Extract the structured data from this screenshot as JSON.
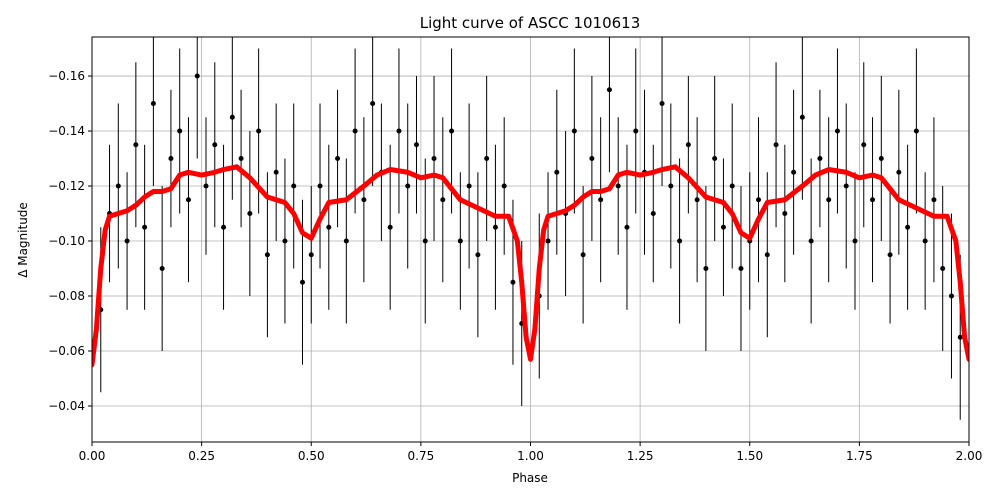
{
  "chart_data": {
    "type": "scatter",
    "title": "Light curve of ASCC 1010613",
    "xlabel": "Phase",
    "ylabel": "Δ Magnitude",
    "xlim": [
      0,
      2
    ],
    "ylim": [
      -0.0269,
      -0.1742
    ],
    "xticks": [
      {
        "value": 0,
        "label": "0.00"
      },
      {
        "value": 0.25,
        "label": "0.25"
      },
      {
        "value": 0.5,
        "label": "0.50"
      },
      {
        "value": 0.75,
        "label": "0.75"
      },
      {
        "value": 1,
        "label": "1.00"
      },
      {
        "value": 1.25,
        "label": "1.25"
      },
      {
        "value": 1.5,
        "label": "1.50"
      },
      {
        "value": 1.75,
        "label": "1.75"
      },
      {
        "value": 2,
        "label": "2.00"
      }
    ],
    "yticks": [
      {
        "value": -0.16,
        "label": "−0.16"
      },
      {
        "value": -0.14,
        "label": "−0.14"
      },
      {
        "value": -0.12,
        "label": "−0.12"
      },
      {
        "value": -0.1,
        "label": "−0.10"
      },
      {
        "value": -0.08,
        "label": "−0.08"
      },
      {
        "value": -0.06,
        "label": "−0.06"
      },
      {
        "value": -0.04,
        "label": "−0.04"
      }
    ],
    "grid": true,
    "series": [
      {
        "type": "scatter",
        "color": "#000000",
        "x": [
          0.02,
          0.04,
          0.06,
          0.08,
          0.1,
          0.12,
          0.14,
          0.16,
          0.18,
          0.2,
          0.22,
          0.24,
          0.26,
          0.28,
          0.3,
          0.32,
          0.34,
          0.36,
          0.38,
          0.4,
          0.42,
          0.44,
          0.46,
          0.48,
          0.5,
          0.52,
          0.54,
          0.56,
          0.58,
          0.6,
          0.62,
          0.64,
          0.66,
          0.68,
          0.7,
          0.72,
          0.74,
          0.76,
          0.78,
          0.8,
          0.82,
          0.84,
          0.86,
          0.88,
          0.9,
          0.92,
          0.94,
          0.96,
          0.98,
          1.02,
          1.04,
          1.06,
          1.08,
          1.1,
          1.12,
          1.14,
          1.16,
          1.18,
          1.2,
          1.22,
          1.24,
          1.26,
          1.28,
          1.3,
          1.32,
          1.34,
          1.36,
          1.38,
          1.4,
          1.42,
          1.44,
          1.46,
          1.48,
          1.5,
          1.52,
          1.54,
          1.56,
          1.58,
          1.6,
          1.62,
          1.64,
          1.66,
          1.68,
          1.7,
          1.72,
          1.74,
          1.76,
          1.78,
          1.8,
          1.82,
          1.84,
          1.86,
          1.88,
          1.9,
          1.92,
          1.94,
          1.96,
          1.98
        ],
        "values": [
          -0.075,
          -0.11,
          -0.12,
          -0.1,
          -0.135,
          -0.105,
          -0.15,
          -0.09,
          -0.13,
          -0.14,
          -0.115,
          -0.16,
          -0.12,
          -0.135,
          -0.105,
          -0.145,
          -0.13,
          -0.11,
          -0.14,
          -0.095,
          -0.125,
          -0.1,
          -0.12,
          -0.085,
          -0.095,
          -0.12,
          -0.105,
          -0.13,
          -0.1,
          -0.14,
          -0.115,
          -0.15,
          -0.125,
          -0.105,
          -0.14,
          -0.12,
          -0.135,
          -0.1,
          -0.13,
          -0.115,
          -0.14,
          -0.1,
          -0.12,
          -0.095,
          -0.13,
          -0.105,
          -0.12,
          -0.085,
          -0.07,
          -0.08,
          -0.1,
          -0.125,
          -0.11,
          -0.14,
          -0.095,
          -0.13,
          -0.115,
          -0.155,
          -0.12,
          -0.105,
          -0.14,
          -0.125,
          -0.11,
          -0.15,
          -0.12,
          -0.1,
          -0.135,
          -0.115,
          -0.09,
          -0.13,
          -0.105,
          -0.12,
          -0.09,
          -0.1,
          -0.115,
          -0.095,
          -0.135,
          -0.11,
          -0.125,
          -0.145,
          -0.1,
          -0.13,
          -0.115,
          -0.14,
          -0.12,
          -0.1,
          -0.135,
          -0.115,
          -0.13,
          -0.095,
          -0.125,
          -0.105,
          -0.14,
          -0.1,
          -0.115,
          -0.09,
          -0.08,
          -0.065
        ],
        "errors": [
          0.03,
          0.025,
          0.03,
          0.025,
          0.03,
          0.03,
          0.03,
          0.03,
          0.025,
          0.03,
          0.03,
          0.03,
          0.025,
          0.03,
          0.03,
          0.03,
          0.025,
          0.03,
          0.03,
          0.03,
          0.025,
          0.03,
          0.03,
          0.03,
          0.025,
          0.03,
          0.03,
          0.025,
          0.03,
          0.03,
          0.03,
          0.03,
          0.025,
          0.03,
          0.03,
          0.03,
          0.025,
          0.03,
          0.03,
          0.03,
          0.03,
          0.025,
          0.03,
          0.03,
          0.03,
          0.03,
          0.025,
          0.03,
          0.03,
          0.03,
          0.025,
          0.03,
          0.03,
          0.03,
          0.025,
          0.03,
          0.03,
          0.03,
          0.025,
          0.03,
          0.03,
          0.03,
          0.025,
          0.03,
          0.03,
          0.03,
          0.025,
          0.03,
          0.03,
          0.03,
          0.025,
          0.03,
          0.03,
          0.025,
          0.03,
          0.03,
          0.03,
          0.025,
          0.03,
          0.03,
          0.03,
          0.025,
          0.03,
          0.03,
          0.03,
          0.025,
          0.03,
          0.03,
          0.03,
          0.025,
          0.03,
          0.03,
          0.03,
          0.025,
          0.03,
          0.03,
          0.03,
          0.03
        ]
      },
      {
        "type": "line",
        "color": "#ff0000",
        "x": [
          0,
          0.01,
          0.02,
          0.03,
          0.04,
          0.06,
          0.08,
          0.1,
          0.12,
          0.14,
          0.16,
          0.18,
          0.2,
          0.22,
          0.25,
          0.28,
          0.3,
          0.33,
          0.36,
          0.4,
          0.44,
          0.46,
          0.48,
          0.5,
          0.52,
          0.54,
          0.58,
          0.62,
          0.65,
          0.68,
          0.72,
          0.75,
          0.78,
          0.8,
          0.84,
          0.88,
          0.92,
          0.95,
          0.97,
          0.98,
          0.99,
          1,
          1.01,
          1.02,
          1.03,
          1.04,
          1.06,
          1.08,
          1.1,
          1.12,
          1.14,
          1.16,
          1.18,
          1.2,
          1.22,
          1.25,
          1.28,
          1.3,
          1.33,
          1.36,
          1.4,
          1.44,
          1.46,
          1.48,
          1.5,
          1.52,
          1.54,
          1.58,
          1.62,
          1.65,
          1.68,
          1.72,
          1.75,
          1.78,
          1.8,
          1.84,
          1.88,
          1.92,
          1.95,
          1.97,
          1.98,
          1.99,
          2
        ],
        "values": [
          -0.055,
          -0.068,
          -0.09,
          -0.104,
          -0.109,
          -0.11,
          -0.111,
          -0.113,
          -0.116,
          -0.118,
          -0.118,
          -0.119,
          -0.124,
          -0.125,
          -0.124,
          -0.125,
          -0.126,
          -0.127,
          -0.123,
          -0.116,
          -0.114,
          -0.11,
          -0.103,
          -0.101,
          -0.108,
          -0.114,
          -0.115,
          -0.12,
          -0.124,
          -0.126,
          -0.125,
          -0.123,
          -0.124,
          -0.123,
          -0.115,
          -0.112,
          -0.109,
          -0.109,
          -0.1,
          -0.085,
          -0.065,
          -0.057,
          -0.068,
          -0.09,
          -0.104,
          -0.109,
          -0.11,
          -0.111,
          -0.113,
          -0.116,
          -0.118,
          -0.118,
          -0.119,
          -0.124,
          -0.125,
          -0.124,
          -0.125,
          -0.126,
          -0.127,
          -0.123,
          -0.116,
          -0.114,
          -0.11,
          -0.103,
          -0.101,
          -0.108,
          -0.114,
          -0.115,
          -0.12,
          -0.124,
          -0.126,
          -0.125,
          -0.123,
          -0.124,
          -0.123,
          -0.115,
          -0.112,
          -0.109,
          -0.109,
          -0.1,
          -0.085,
          -0.065,
          -0.057
        ]
      }
    ]
  }
}
